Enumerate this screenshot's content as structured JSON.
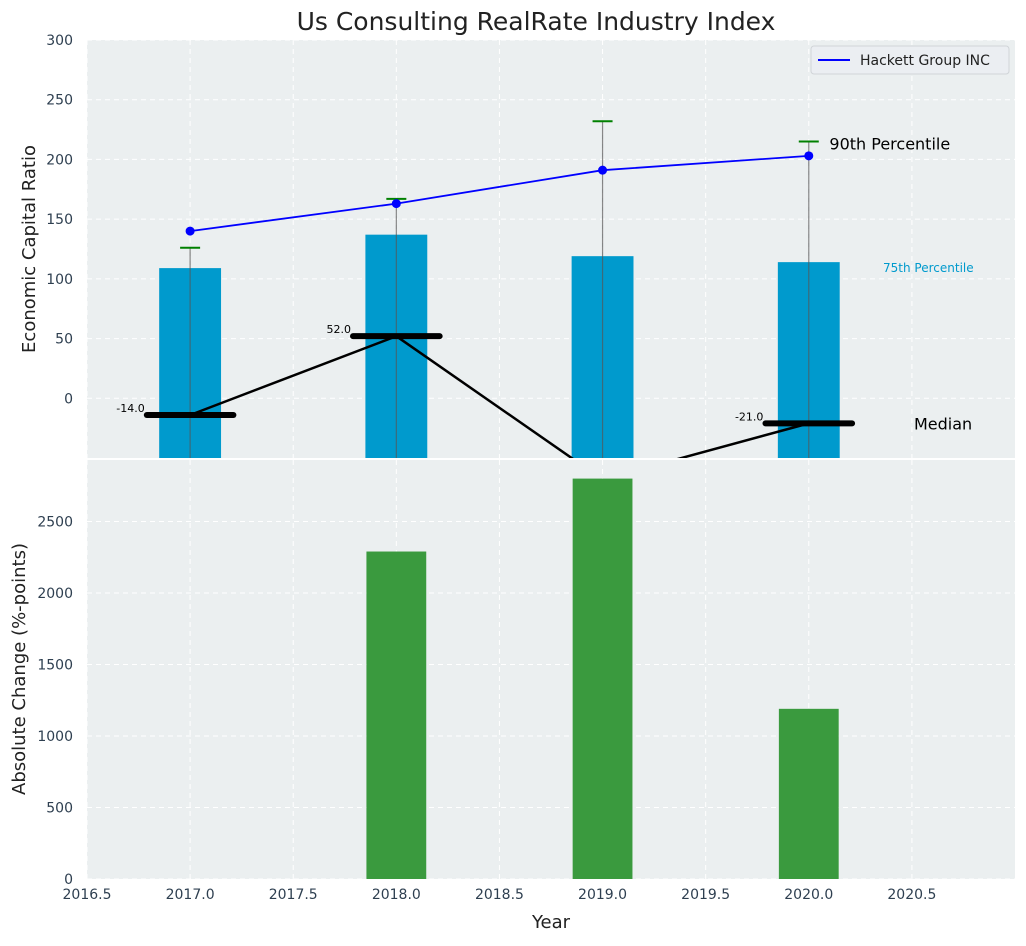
{
  "chart_data": [
    {
      "type": "bar",
      "title": "Us Consulting RealRate Industry Index",
      "ylabel": "Economic Capital Ratio",
      "xlim": [
        2016.5,
        2021.0
      ],
      "ylim": [
        -50,
        300
      ],
      "yticks": [
        "0",
        "50",
        "100",
        "150",
        "200",
        "250",
        "300"
      ],
      "grid": true,
      "legend": {
        "placement": "top-right",
        "entries": [
          "Hackett Group INC"
        ]
      },
      "x": [
        2017,
        2018,
        2019,
        2020
      ],
      "series": [
        {
          "name": "75th Percentile",
          "kind": "bar",
          "color": "#009acd",
          "values": [
            109,
            137,
            119,
            114
          ]
        },
        {
          "name": "Hackett Group INC",
          "kind": "line",
          "color": "#0000ff",
          "values": [
            140,
            163,
            191,
            203
          ]
        },
        {
          "name": "90th Percentile",
          "kind": "errorbar-cap",
          "color": "#008000",
          "values": [
            126,
            167,
            232,
            215
          ]
        },
        {
          "name": "Median",
          "kind": "line",
          "color": "#000000",
          "values": [
            -14,
            52,
            -68,
            -21
          ]
        }
      ],
      "median_labels": [
        "-14.0",
        "52.0",
        "",
        "-21.0"
      ],
      "annotations": {
        "p90": "90th Percentile",
        "p75": "75th Percentile",
        "median": "Median"
      }
    },
    {
      "type": "bar",
      "xlabel": "Year",
      "ylabel": "Absolute Change (%-points)",
      "xlim": [
        2016.5,
        2021.0
      ],
      "ylim": [
        0,
        2930
      ],
      "xticks": [
        "2016.5",
        "2017.0",
        "2017.5",
        "2018.0",
        "2018.5",
        "2019.0",
        "2019.5",
        "2020.0",
        "2020.5"
      ],
      "yticks": [
        "0",
        "500",
        "1000",
        "1500",
        "2000",
        "2500"
      ],
      "grid": true,
      "x": [
        2018,
        2019,
        2020
      ],
      "values": [
        2290,
        2800,
        1190
      ],
      "color": "#3a9a3e"
    }
  ]
}
